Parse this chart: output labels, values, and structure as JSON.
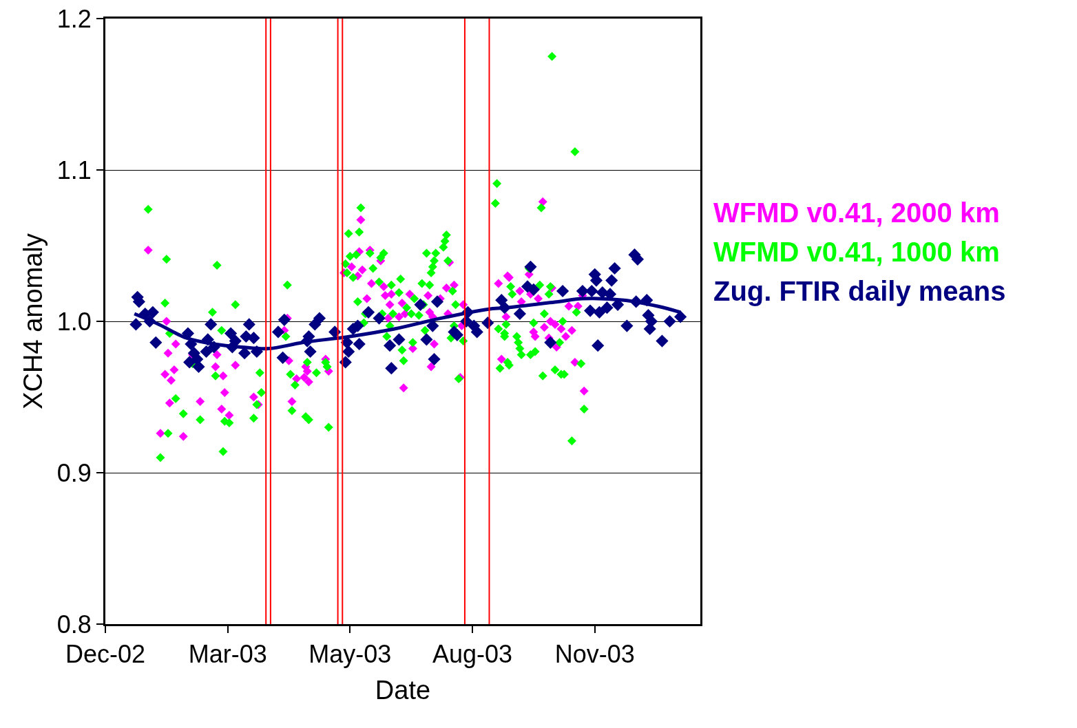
{
  "chart_data": {
    "type": "scatter",
    "xlabel": "Date",
    "ylabel": "XCH4 anomaly",
    "xlim": [
      "2002-12-20",
      "2004-01-13"
    ],
    "xticks": [
      {
        "value": "2002-12-20",
        "label": "Dec-02"
      },
      {
        "value": "2003-03-10",
        "label": "Mar-03"
      },
      {
        "value": "2003-05-29",
        "label": "May-03"
      },
      {
        "value": "2003-08-17",
        "label": "Aug-03"
      },
      {
        "value": "2003-11-05",
        "label": "Nov-03"
      }
    ],
    "ylim": [
      0.8,
      1.2
    ],
    "yticks": [
      0.8,
      0.9,
      {
        "value": 1,
        "label": "1.0"
      },
      1.1,
      1.2
    ],
    "grid": "y",
    "legend": "right",
    "marker": "diamond",
    "ref_lines": [
      {
        "axis": "x",
        "value": "2003-04-04",
        "color": "#ff0000"
      },
      {
        "axis": "x",
        "value": "2003-04-07",
        "color": "#ff0000"
      },
      {
        "axis": "x",
        "value": "2003-05-21",
        "color": "#ff0000"
      },
      {
        "axis": "x",
        "value": "2003-05-24",
        "color": "#ff0000"
      },
      {
        "axis": "x",
        "value": "2003-08-12",
        "color": "#ff0000"
      },
      {
        "axis": "x",
        "value": "2003-08-28",
        "color": "#ff0000"
      }
    ],
    "series": [
      {
        "name": "WFMD v0.41, 2000 km",
        "color": "#ff00ff",
        "x": [
          "2003-01-17",
          "2003-01-29",
          "2003-02-04",
          "2003-01-30",
          "2003-02-03",
          "2003-01-28",
          "2003-02-01",
          "2003-01-31",
          "2003-01-25",
          "2003-02-09",
          "2003-02-15",
          "2003-02-20",
          "2003-03-03",
          "2003-03-02",
          "2003-03-07",
          "2003-03-08",
          "2003-03-06",
          "2003-03-11",
          "2003-03-15",
          "2003-03-27",
          "2003-03-30",
          "2003-04-18",
          "2003-04-16",
          "2003-04-19",
          "2003-04-24",
          "2003-05-01",
          "2003-05-02",
          "2003-04-21",
          "2003-06-05",
          "2003-05-30",
          "2003-06-06",
          "2003-06-03",
          "2003-05-25",
          "2003-06-11",
          "2003-06-04",
          "2003-06-18",
          "2003-06-12",
          "2003-06-09",
          "2003-06-20",
          "2003-06-21",
          "2003-06-25",
          "2003-07-07",
          "2003-06-24",
          "2003-07-02",
          "2003-06-30",
          "2003-06-23",
          "2003-07-04",
          "2003-07-19",
          "2003-07-20",
          "2003-07-22",
          "2003-07-27",
          "2003-07-31",
          "2003-08-05",
          "2003-08-01",
          "2003-08-11",
          "2003-08-10",
          "2003-07-09",
          "2003-07-23",
          "2003-07-21",
          "2003-07-03",
          "2003-08-02",
          "2003-04-30",
          "2003-04-29",
          "2003-05-13",
          "2003-05-15",
          "2003-09-03",
          "2003-09-09",
          "2003-09-05",
          "2003-08-09",
          "2003-10-02",
          "2003-09-23",
          "2003-09-10",
          "2003-09-17",
          "2003-09-24",
          "2003-09-18",
          "2003-09-29",
          "2003-10-08",
          "2003-10-19",
          "2003-10-25",
          "2003-09-08",
          "2003-09-26",
          "2003-09-27",
          "2003-10-03",
          "2003-10-07",
          "2003-10-10",
          "2003-10-14",
          "2003-10-21",
          "2003-10-17",
          "2003-10-06",
          "2003-10-11",
          "2003-10-23",
          "2003-10-29",
          "2003-10-28"
        ],
        "values": [
          1.047,
          1.0,
          0.985,
          0.979,
          0.968,
          0.965,
          0.961,
          0.946,
          0.926,
          0.924,
          0.978,
          0.947,
          0.978,
          0.97,
          0.964,
          0.953,
          0.942,
          0.938,
          0.971,
          0.95,
          0.945,
          1.002,
          0.994,
          0.974,
          0.962,
          0.967,
          0.96,
          0.947,
          1.067,
          1.036,
          1.034,
          1.03,
          1.032,
          1.047,
          1.046,
          1.04,
          1.025,
          1.015,
          1.023,
          1.017,
          1.018,
          1.018,
          1.011,
          1.012,
          1.003,
          1.002,
          1.005,
          1.017,
          1.006,
          1.003,
          1.015,
          1.022,
          1.024,
          1.005,
          1.011,
          0.997,
          0.982,
          0.985,
          0.97,
          0.956,
          1.039,
          0.97,
          0.963,
          0.975,
          0.967,
          1.025,
          1.03,
          0.975,
          0.963,
          1.079,
          1.031,
          1.029,
          1.02,
          1.018,
          1.013,
          1.015,
          1.022,
          1.01,
          1.01,
          1.003,
          0.993,
          0.99,
          0.996,
          1.0,
          0.998,
          0.995,
          0.994,
          0.99,
          0.989,
          0.983,
          0.973,
          0.954,
          1.017
        ]
      },
      {
        "name": "WFMD v0.41, 1000 km",
        "color": "#00ff00",
        "x": [
          "2003-01-17",
          "2003-01-29",
          "2003-01-28",
          "2003-01-31",
          "2003-02-04",
          "2003-01-30",
          "2003-01-25",
          "2003-02-09",
          "2003-02-15",
          "2003-02-20",
          "2003-03-03",
          "2003-02-28",
          "2003-03-06",
          "2003-03-02",
          "2003-03-08",
          "2003-03-11",
          "2003-03-07",
          "2003-03-15",
          "2003-03-31",
          "2003-04-01",
          "2003-03-29",
          "2003-03-27",
          "2003-04-18",
          "2003-04-17",
          "2003-04-20",
          "2003-04-23",
          "2003-04-21",
          "2003-05-01",
          "2003-05-02",
          "2003-04-30",
          "2003-05-15",
          "2003-05-07",
          "2003-05-13",
          "2003-05-14",
          "2003-06-05",
          "2003-05-28",
          "2003-06-04",
          "2003-05-29",
          "2003-06-02",
          "2003-05-26",
          "2003-05-27",
          "2003-05-31",
          "2003-06-13",
          "2003-06-11",
          "2003-06-20",
          "2003-06-18",
          "2003-06-03",
          "2003-06-17",
          "2003-06-25",
          "2003-07-01",
          "2003-06-30",
          "2003-07-10",
          "2003-07-15",
          "2003-07-20",
          "2003-07-18",
          "2003-07-24",
          "2003-07-23",
          "2003-07-22",
          "2003-07-21",
          "2003-07-29",
          "2003-07-30",
          "2003-07-31",
          "2003-08-01",
          "2003-08-04",
          "2003-08-06",
          "2003-07-16",
          "2003-07-05",
          "2003-07-08",
          "2003-07-13",
          "2003-06-26",
          "2003-06-19",
          "2003-06-08",
          "2003-06-07",
          "2003-06-24",
          "2003-06-22",
          "2003-07-17",
          "2003-07-09",
          "2003-07-02",
          "2003-07-03",
          "2003-08-05",
          "2003-08-03",
          "2003-08-11",
          "2003-08-08",
          "2003-09-02",
          "2003-09-01",
          "2003-09-03",
          "2003-09-07",
          "2003-09-04",
          "2003-09-09",
          "2003-10-08",
          "2003-10-23",
          "2003-10-01",
          "2003-09-23",
          "2003-09-11",
          "2003-09-12",
          "2003-09-30",
          "2003-10-07",
          "2003-10-06",
          "2003-10-03",
          "2003-10-15",
          "2003-09-26",
          "2003-09-08",
          "2003-09-07",
          "2003-09-15",
          "2003-09-16",
          "2003-09-17",
          "2003-09-18",
          "2003-09-24",
          "2003-09-27",
          "2003-10-13",
          "2003-10-24",
          "2003-09-10",
          "2003-10-02",
          "2003-10-10",
          "2003-10-14",
          "2003-10-16",
          "2003-10-27",
          "2003-10-29",
          "2003-10-21"
        ],
        "values": [
          1.074,
          1.041,
          1.012,
          0.992,
          0.949,
          0.926,
          0.91,
          0.939,
          0.972,
          0.935,
          1.037,
          1.006,
          0.994,
          0.964,
          0.934,
          0.933,
          0.914,
          1.011,
          0.966,
          0.953,
          0.945,
          0.936,
          1.024,
          0.99,
          0.965,
          0.958,
          0.941,
          0.973,
          0.935,
          0.937,
          0.93,
          0.966,
          0.973,
          0.97,
          1.075,
          1.058,
          1.059,
          1.043,
          1.044,
          1.038,
          1.032,
          1.029,
          1.035,
          1.045,
          1.045,
          1.042,
          1.013,
          1.026,
          1.024,
          1.028,
          1.019,
          1.015,
          1.025,
          1.024,
          1.045,
          1.045,
          1.04,
          1.036,
          1.032,
          1.049,
          1.053,
          1.057,
          1.04,
          1.02,
          1.011,
          1.011,
          1.009,
          1.005,
          1.004,
          1.005,
          1.005,
          1.005,
          0.999,
          0.997,
          0.99,
          0.994,
          0.986,
          0.981,
          0.974,
          0.997,
          0.989,
          0.987,
          0.962,
          1.091,
          1.078,
          0.995,
          0.992,
          0.969,
          0.973,
          1.175,
          1.112,
          1.075,
          1.035,
          1.023,
          1.018,
          1.024,
          1.023,
          1.018,
          1.005,
          1.0,
          0.999,
          0.998,
          0.99,
          0.99,
          0.986,
          0.982,
          0.978,
          0.978,
          0.98,
          0.986,
          1.006,
          0.971,
          0.964,
          0.968,
          0.965,
          0.965,
          0.972,
          0.942,
          0.921
        ]
      },
      {
        "name": "Zug. FTIR daily means",
        "color": "#000080",
        "x": [
          "2003-01-10",
          "2003-01-11",
          "2003-01-09",
          "2003-01-15",
          "2003-01-20",
          "2003-01-18",
          "2003-01-22",
          "2003-02-12",
          "2003-02-14",
          "2003-02-16",
          "2003-02-13",
          "2003-02-19",
          "2003-02-18",
          "2003-02-27",
          "2003-02-25",
          "2003-02-24",
          "2003-03-01",
          "2003-03-12",
          "2003-03-13",
          "2003-03-15",
          "2003-03-21",
          "2003-03-24",
          "2003-03-22",
          "2003-03-27",
          "2003-03-29",
          "2003-04-16",
          "2003-04-12",
          "2003-04-15",
          "2003-05-01",
          "2003-05-09",
          "2003-05-06",
          "2003-05-02",
          "2003-05-03",
          "2003-05-19",
          "2003-05-31",
          "2003-06-03",
          "2003-05-27",
          "2003-05-28",
          "2003-05-26",
          "2003-06-04",
          "2003-06-10",
          "2003-06-17",
          "2003-06-24",
          "2003-06-25",
          "2003-06-30",
          "2003-07-14",
          "2003-07-25",
          "2003-07-18",
          "2003-07-22",
          "2003-07-23",
          "2003-08-05",
          "2003-08-07",
          "2003-08-14",
          "2003-08-18",
          "2003-08-20",
          "2003-08-27",
          "2003-09-05",
          "2003-09-07",
          "2003-08-13",
          "2003-09-24",
          "2003-09-22",
          "2003-09-26",
          "2003-10-15",
          "2003-10-28",
          "2003-11-03",
          "2003-11-05",
          "2003-11-06",
          "2003-11-02",
          "2003-11-08",
          "2003-11-10",
          "2003-11-15",
          "2003-11-13",
          "2003-11-18",
          "2003-11-16",
          "2003-11-20",
          "2003-11-07",
          "2003-11-26",
          "2003-12-02",
          "2003-12-09",
          "2003-12-01",
          "2003-12-03",
          "2003-12-10",
          "2003-12-12",
          "2003-12-11",
          "2003-12-24",
          "2003-12-19",
          "2003-12-31",
          "2003-09-17",
          "2003-10-07"
        ],
        "values": [
          1.016,
          1.013,
          0.998,
          1.005,
          1.006,
          1.0,
          0.986,
          0.992,
          0.985,
          0.979,
          0.973,
          0.97,
          0.975,
          0.998,
          0.988,
          0.98,
          0.983,
          0.992,
          0.983,
          0.987,
          0.979,
          0.998,
          0.99,
          0.989,
          0.98,
          1.001,
          0.993,
          0.976,
          0.987,
          1.002,
          0.998,
          0.99,
          0.98,
          0.993,
          0.995,
          0.997,
          0.986,
          0.98,
          0.973,
          0.985,
          1.006,
          1.002,
          0.984,
          0.969,
          0.988,
          1.011,
          1.013,
          0.988,
          0.997,
          0.975,
          0.993,
          0.991,
          1.006,
          0.997,
          0.993,
          0.999,
          1.014,
          1.009,
          1.0,
          1.036,
          1.023,
          1.021,
          1.02,
          1.02,
          1.02,
          1.031,
          1.027,
          1.007,
          1.006,
          1.019,
          1.018,
          1.009,
          1.035,
          1.027,
          1.011,
          0.984,
          0.997,
          1.013,
          1.014,
          1.044,
          1.041,
          1.004,
          1.0,
          0.995,
          1.0,
          0.987,
          1.003,
          1.005,
          0.986
        ]
      },
      {
        "type": "line",
        "marker": "none",
        "color": "#000080",
        "x": [
          "2003-01-08",
          "2003-01-24",
          "2003-02-11",
          "2003-03-01",
          "2003-03-19",
          "2003-04-06",
          "2003-04-28",
          "2003-05-29",
          "2003-06-27",
          "2003-07-27",
          "2003-08-27",
          "2003-09-08",
          "2003-10-12",
          "2003-10-28",
          "2003-11-24",
          "2003-12-16",
          "2003-12-31"
        ],
        "values": [
          1.005,
          0.998,
          0.989,
          0.985,
          0.983,
          0.982,
          0.986,
          0.99,
          0.995,
          1.002,
          1.008,
          1.009,
          1.013,
          1.015,
          1.014,
          1.01,
          1.006
        ]
      }
    ]
  }
}
